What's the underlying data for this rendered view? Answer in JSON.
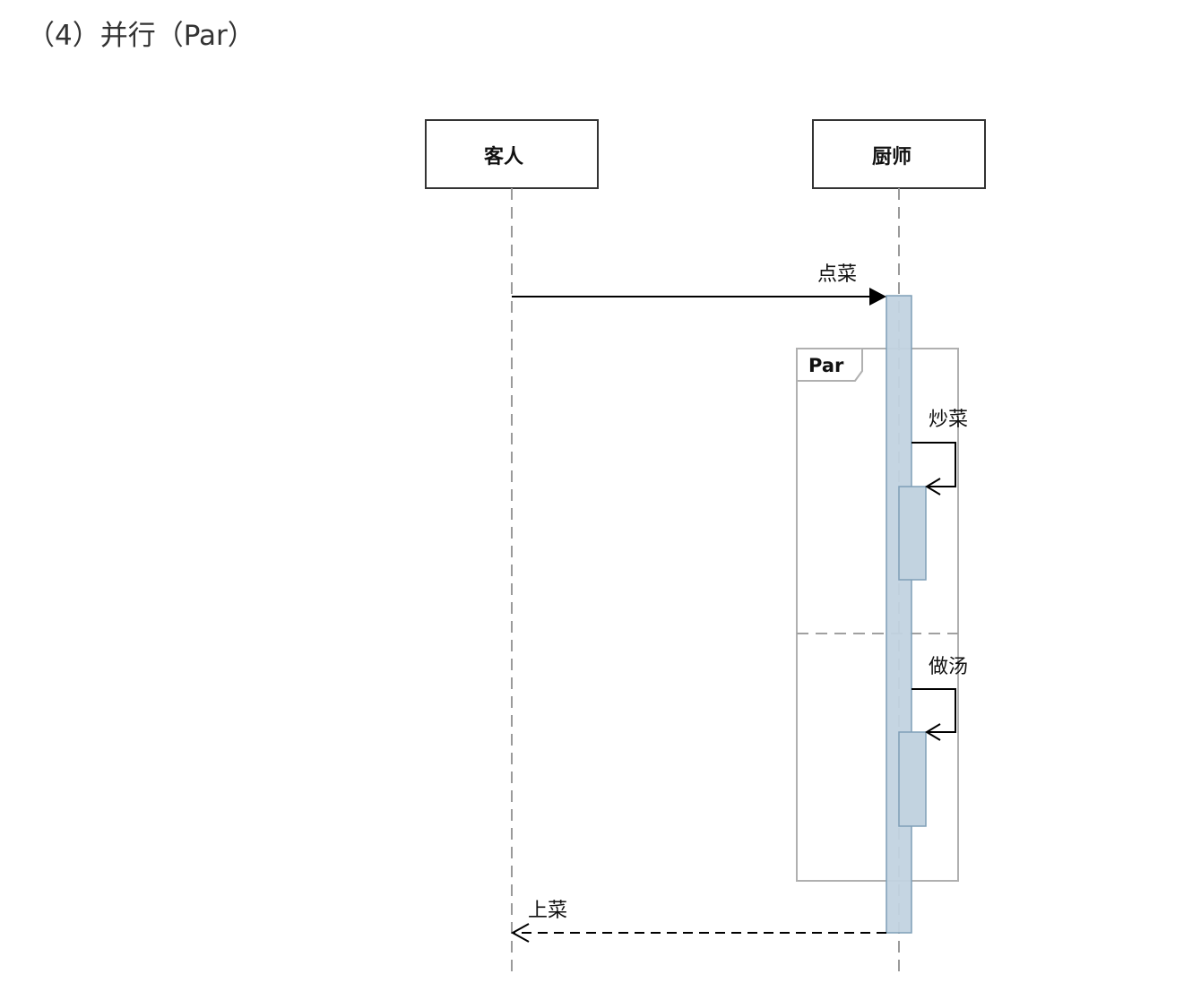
{
  "heading": "（4）并行（Par）",
  "diagram": {
    "type": "sequence",
    "participants": [
      {
        "id": "customer",
        "label": "客人"
      },
      {
        "id": "chef",
        "label": "厨师"
      }
    ],
    "messages": [
      {
        "label": "点菜",
        "from": "customer",
        "to": "chef",
        "style": "sync"
      },
      {
        "label": "炒菜",
        "from": "chef",
        "to": "chef",
        "style": "self"
      },
      {
        "label": "做汤",
        "from": "chef",
        "to": "chef",
        "style": "self"
      },
      {
        "label": "上菜",
        "from": "chef",
        "to": "customer",
        "style": "return"
      }
    ],
    "fragment": {
      "operator": "Par"
    },
    "colors": {
      "activation_fill": "#c2d3e0",
      "activation_stroke": "#7f9fb7",
      "frame_stroke": "#b0b0b0",
      "lifeline": "#9a9a9a",
      "line": "#000000"
    }
  }
}
